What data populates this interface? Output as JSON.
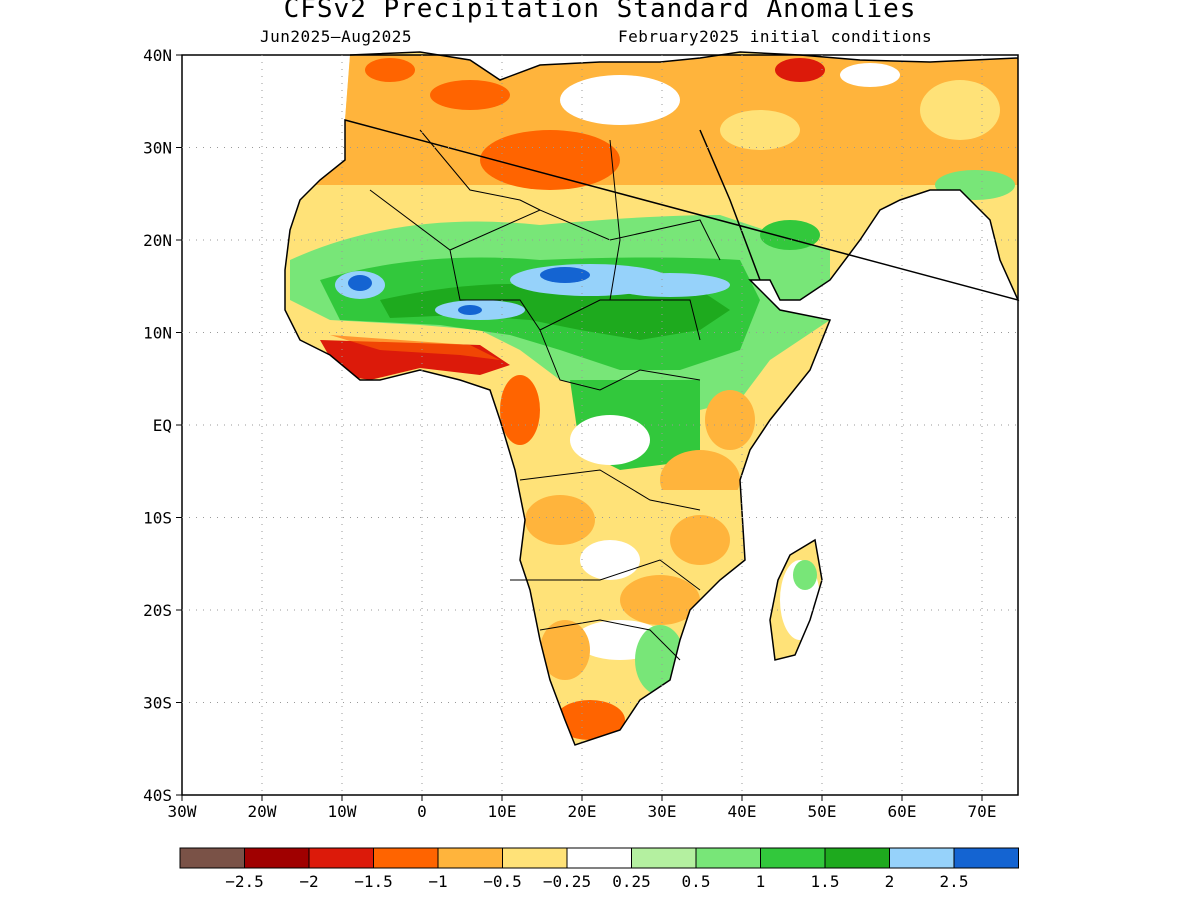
{
  "title": "CFSv2 Precipitation Standard Anomalies",
  "subtitle_left": "Jun2025–Aug2025",
  "subtitle_right": "February2025 initial conditions",
  "lat_ticks": [
    "40N",
    "30N",
    "20N",
    "10N",
    "EQ",
    "10S",
    "20S",
    "30S",
    "40S"
  ],
  "lon_ticks": [
    "30W",
    "20W",
    "10W",
    "0",
    "10E",
    "20E",
    "30E",
    "40E",
    "50E",
    "60E",
    "70E"
  ],
  "extent": {
    "lon": [
      -30,
      75
    ],
    "lat": [
      -40,
      40
    ]
  },
  "colorbar": {
    "colors": [
      "#7a5247",
      "#a00000",
      "#dc1a0a",
      "#ff6400",
      "#ffb43c",
      "#ffe278",
      "#ffffff",
      "#b4f0a0",
      "#78e678",
      "#32c83c",
      "#1eaa1e",
      "#96d2fa",
      "#1464d2"
    ],
    "labels": [
      "−2.5",
      "−2",
      "−1.5",
      "−1",
      "−0.5",
      "−0.25",
      "0.25",
      "0.5",
      "1",
      "1.5",
      "2",
      "2.5"
    ]
  }
}
